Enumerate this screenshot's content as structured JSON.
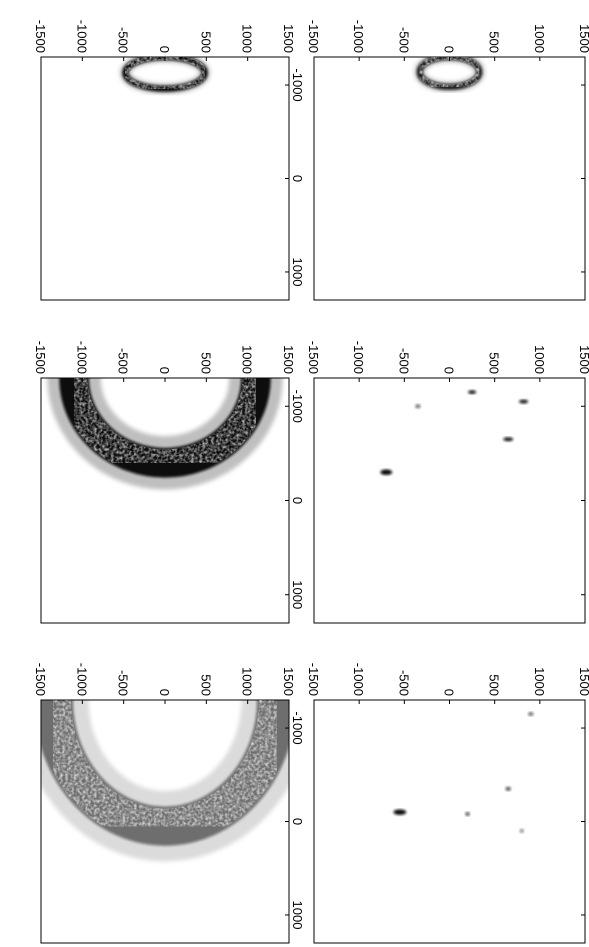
{
  "figure": {
    "orientation": "rotated-90-clockwise",
    "colormap": "gray-reversed"
  },
  "chart_data": [
    {
      "type": "heatmap",
      "panel": "row1-col1",
      "title": "",
      "xlabel": "",
      "ylabel": "",
      "axis_a": {
        "lim": [
          -1500,
          1500
        ],
        "ticks": [
          -1500,
          -1000,
          -500,
          0,
          500,
          1000,
          1500
        ],
        "tick_labels": [
          "-1500",
          "-1000",
          "-500",
          "0",
          "500",
          "1000",
          "1500"
        ]
      },
      "axis_b": {
        "lim": [
          -1300,
          1300
        ],
        "ticks": [
          -1000,
          0,
          1000
        ],
        "tick_labels": [
          "-1000",
          "0",
          "1000"
        ]
      },
      "features": [
        {
          "kind": "ring",
          "a_center": 0,
          "b_center": -1140,
          "a_radius": 330,
          "b_radius": 160,
          "intensity": 0.9
        }
      ]
    },
    {
      "type": "heatmap",
      "panel": "row2-col1",
      "title": "",
      "xlabel": "",
      "ylabel": "",
      "axis_a": {
        "lim": [
          -1500,
          1500
        ],
        "ticks": [
          -1500,
          -1000,
          -500,
          0,
          500,
          1000,
          1500
        ],
        "tick_labels": [
          "-1500",
          "-1000",
          "-500",
          "0",
          "500",
          "1000",
          "1500"
        ]
      },
      "axis_b": {
        "lim": [
          -1300,
          1300
        ],
        "ticks": [
          -1000,
          0,
          1000
        ],
        "tick_labels": [
          "-1000",
          "0",
          "1000"
        ]
      },
      "features": [
        {
          "kind": "blob",
          "a": -700,
          "b": -300,
          "a_size": 130,
          "b_size": 60,
          "intensity": 1.0
        },
        {
          "kind": "blob",
          "a": 250,
          "b": -1150,
          "a_size": 90,
          "b_size": 40,
          "intensity": 0.9
        },
        {
          "kind": "blob",
          "a": 650,
          "b": -650,
          "a_size": 110,
          "b_size": 45,
          "intensity": 0.9
        },
        {
          "kind": "blob",
          "a": 820,
          "b": -1050,
          "a_size": 100,
          "b_size": 45,
          "intensity": 0.9
        },
        {
          "kind": "blob",
          "a": -350,
          "b": -1000,
          "a_size": 60,
          "b_size": 30,
          "intensity": 0.6
        }
      ]
    },
    {
      "type": "heatmap",
      "panel": "row3-col1",
      "title": "",
      "xlabel": "",
      "ylabel": "",
      "axis_a": {
        "lim": [
          -1500,
          1500
        ],
        "ticks": [
          -1500,
          -1000,
          -500,
          0,
          500,
          1000,
          1500
        ],
        "tick_labels": [
          "-1500",
          "-1000",
          "-500",
          "0",
          "500",
          "1000",
          "1500"
        ]
      },
      "axis_b": {
        "lim": [
          -1300,
          1300
        ],
        "ticks": [
          -1000,
          0,
          1000
        ],
        "tick_labels": [
          "-1000",
          "0",
          "1000"
        ]
      },
      "features": [
        {
          "kind": "blob",
          "a": -550,
          "b": -100,
          "a_size": 140,
          "b_size": 60,
          "intensity": 1.0
        },
        {
          "kind": "blob",
          "a": 200,
          "b": -80,
          "a_size": 50,
          "b_size": 30,
          "intensity": 0.7
        },
        {
          "kind": "blob",
          "a": 900,
          "b": -1150,
          "a_size": 60,
          "b_size": 30,
          "intensity": 0.6
        },
        {
          "kind": "blob",
          "a": 650,
          "b": -350,
          "a_size": 60,
          "b_size": 30,
          "intensity": 0.7
        },
        {
          "kind": "blob",
          "a": 800,
          "b": 100,
          "a_size": 40,
          "b_size": 25,
          "intensity": 0.5
        }
      ]
    },
    {
      "type": "heatmap",
      "panel": "row1-col2",
      "title": "",
      "xlabel": "",
      "ylabel": "",
      "axis_a": {
        "lim": [
          -1500,
          1500
        ],
        "ticks": [
          -1500,
          -1000,
          -500,
          0,
          500,
          1000,
          1500
        ],
        "tick_labels": [
          "-1500",
          "-1000",
          "-500",
          "0",
          "500",
          "1000",
          "1500"
        ]
      },
      "axis_b": {
        "lim": [
          -1300,
          1300
        ],
        "ticks": [
          -1000,
          0,
          1000
        ],
        "tick_labels": [
          "-1000",
          "0",
          "1000"
        ]
      },
      "features": [
        {
          "kind": "ring",
          "a_center": 0,
          "b_center": -1130,
          "a_radius": 480,
          "b_radius": 170,
          "intensity": 1.0
        }
      ]
    },
    {
      "type": "heatmap",
      "panel": "row2-col2",
      "title": "",
      "xlabel": "",
      "ylabel": "",
      "axis_a": {
        "lim": [
          -1500,
          1500
        ],
        "ticks": [
          -1500,
          -1000,
          -500,
          0,
          500,
          1000,
          1500
        ],
        "tick_labels": [
          "-1500",
          "-1000",
          "-500",
          "0",
          "500",
          "1000",
          "1500"
        ]
      },
      "axis_b": {
        "lim": [
          -1300,
          1300
        ],
        "ticks": [
          -1000,
          0,
          1000
        ],
        "tick_labels": [
          "-1000",
          "0",
          "1000"
        ]
      },
      "features": [
        {
          "kind": "ring",
          "a_center": 0,
          "b_center": -1300,
          "a_radius": 1100,
          "b_radius": 900,
          "intensity": 1.0
        }
      ]
    },
    {
      "type": "heatmap",
      "panel": "row3-col2",
      "title": "",
      "xlabel": "",
      "ylabel": "",
      "axis_a": {
        "lim": [
          -1500,
          1500
        ],
        "ticks": [
          -1500,
          -1000,
          -500,
          0,
          500,
          1000,
          1500
        ],
        "tick_labels": [
          "-1500",
          "-1000",
          "-500",
          "0",
          "500",
          "1000",
          "1500"
        ]
      },
      "axis_b": {
        "lim": [
          -1300,
          1300
        ],
        "ticks": [
          -1000,
          0,
          1000
        ],
        "tick_labels": [
          "-1000",
          "0",
          "1000"
        ]
      },
      "features": [
        {
          "kind": "ring",
          "a_center": 0,
          "b_center": -1300,
          "a_radius": 1350,
          "b_radius": 1350,
          "intensity": 0.55
        }
      ]
    }
  ]
}
